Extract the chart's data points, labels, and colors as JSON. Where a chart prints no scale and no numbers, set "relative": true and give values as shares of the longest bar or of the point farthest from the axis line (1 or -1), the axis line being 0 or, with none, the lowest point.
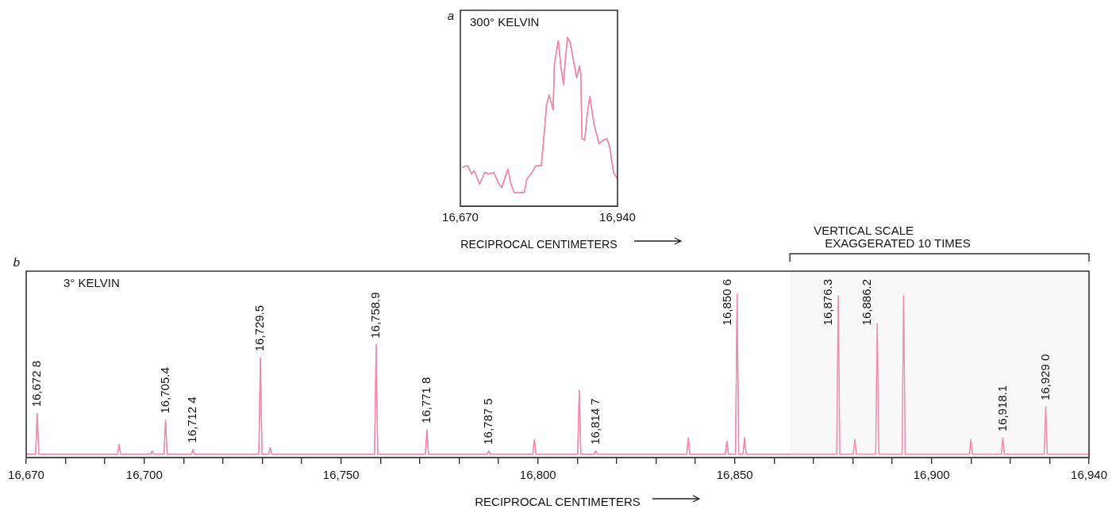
{
  "chart_data": [
    {
      "type": "line",
      "title": "300° KELVIN",
      "xlabel": "RECIPROCAL CENTIMETERS",
      "annotations": [
        "a"
      ],
      "relative": true,
      "color": "#f08aa8",
      "grid": false,
      "legend": false,
      "tick_labels": "x",
      "xlim": [
        16670,
        16940
      ],
      "xticks": [
        {
          "value": 16670,
          "label": "16,670"
        },
        {
          "value": 16940,
          "label": "16,940"
        }
      ],
      "x": [
        16673.6,
        16682.6,
        16689.4,
        16693.9,
        16703.0,
        16712.0,
        16718.8,
        16727.8,
        16734.6,
        16741.3,
        16751.7,
        16757.1,
        16762.6,
        16779.7,
        16784.2,
        16793.3,
        16800.0,
        16809.1,
        16813.6,
        16818.1,
        16822.6,
        16829.4,
        16831.6,
        16838.4,
        16842.9,
        16847.4,
        16849.7,
        16854.2,
        16858.7,
        16865.5,
        16870.0,
        16874.5,
        16876.8,
        16879.1,
        16883.6,
        16888.1,
        16892.6,
        16899.4,
        16903.9,
        16908.4,
        16915.2,
        16922.0,
        16926.5,
        16933.2,
        16940.0
      ],
      "values": [
        0.23,
        0.24,
        0.19,
        0.21,
        0.13,
        0.2,
        0.19,
        0.2,
        0.14,
        0.11,
        0.22,
        0.13,
        0.08,
        0.08,
        0.16,
        0.2,
        0.24,
        0.24,
        0.41,
        0.6,
        0.66,
        0.57,
        0.84,
        0.98,
        0.82,
        0.72,
        0.84,
        1.0,
        0.97,
        0.84,
        0.76,
        0.83,
        0.79,
        0.4,
        0.39,
        0.55,
        0.65,
        0.49,
        0.43,
        0.37,
        0.39,
        0.4,
        0.35,
        0.2,
        0.16
      ]
    },
    {
      "type": "line",
      "title": "3° KELVIN",
      "xlabel": "RECIPROCAL CENTIMETERS",
      "relative": true,
      "color": "#f08aa8",
      "grid": false,
      "legend": false,
      "tick_labels": "x",
      "xlim": [
        16670,
        16940
      ],
      "xticks": [
        {
          "value": 16670,
          "label": "16,670"
        },
        {
          "value": 16680,
          "label": null
        },
        {
          "value": 16690,
          "label": null
        },
        {
          "value": 16700,
          "label": "16,700"
        },
        {
          "value": 16710,
          "label": null
        },
        {
          "value": 16720,
          "label": null
        },
        {
          "value": 16730,
          "label": null
        },
        {
          "value": 16740,
          "label": null
        },
        {
          "value": 16750,
          "label": "16,750"
        },
        {
          "value": 16760,
          "label": null
        },
        {
          "value": 16770,
          "label": null
        },
        {
          "value": 16780,
          "label": null
        },
        {
          "value": 16790,
          "label": null
        },
        {
          "value": 16800,
          "label": "16,800"
        },
        {
          "value": 16810,
          "label": null
        },
        {
          "value": 16820,
          "label": null
        },
        {
          "value": 16830,
          "label": null
        },
        {
          "value": 16840,
          "label": null
        },
        {
          "value": 16850,
          "label": "16,850"
        },
        {
          "value": 16860,
          "label": null
        },
        {
          "value": 16870,
          "label": null
        },
        {
          "value": 16880,
          "label": null
        },
        {
          "value": 16890,
          "label": null
        },
        {
          "value": 16900,
          "label": "16,900"
        },
        {
          "value": 16910,
          "label": null
        },
        {
          "value": 16920,
          "label": null
        },
        {
          "value": 16930,
          "label": null
        },
        {
          "value": 16940,
          "label": "16,940"
        }
      ],
      "bands": [
        {
          "axis": "x",
          "from": 16864,
          "to": 16940,
          "label": "VERTICAL SCALE\nEXAGGERATED 10 TIMES",
          "color": "#f4f4f4"
        }
      ],
      "annotations": [
        "b",
        {
          "text": "16,672 8",
          "x": 16672.8,
          "y": 0.27
        },
        {
          "text": "16,705.4",
          "x": 16705.4,
          "y": 0.23
        },
        {
          "text": "16,712 4",
          "x": 16712.4,
          "y": 0.05
        },
        {
          "text": "16,729.5",
          "x": 16729.5,
          "y": 0.61
        },
        {
          "text": "16,758.9",
          "x": 16758.9,
          "y": 0.69
        },
        {
          "text": "16,771 8",
          "x": 16771.8,
          "y": 0.17
        },
        {
          "text": "16,787 5",
          "x": 16787.5,
          "y": 0.04
        },
        {
          "text": "16,814 7",
          "x": 16814.7,
          "y": 0.04
        },
        {
          "text": "16,850 6",
          "x": 16850.6,
          "y": 1
        },
        {
          "text": "16,876.3",
          "x": 16876.3,
          "y": 0.99
        },
        {
          "text": "16,886.2",
          "x": 16886.2,
          "y": 0.82
        },
        {
          "text": "16,918.1",
          "x": 16918.1,
          "y": 0.12
        },
        {
          "text": "16,929 0",
          "x": 16929.0,
          "y": 0.31
        }
      ],
      "x": [
        16670,
        16672.4,
        16672.8,
        16673.2,
        16693.2,
        16693.6,
        16694.0,
        16701.6,
        16702.0,
        16702.4,
        16705.0,
        16705.4,
        16705.8,
        16712.0,
        16712.4,
        16712.8,
        16729.1,
        16729.5,
        16729.9,
        16731.6,
        16732.0,
        16732.4,
        16758.5,
        16758.9,
        16759.3,
        16771.4,
        16771.8,
        16772.2,
        16787.1,
        16787.5,
        16787.9,
        16798.7,
        16799.1,
        16799.5,
        16810.1,
        16810.5,
        16810.9,
        16814.3,
        16814.7,
        16815.1,
        16837.8,
        16838.2,
        16838.6,
        16847.6,
        16848.0,
        16848.4,
        16850.2,
        16850.6,
        16851.0,
        16852.1,
        16852.5,
        16852.9,
        16875.9,
        16876.3,
        16876.7,
        16880.1,
        16880.5,
        16880.9,
        16885.8,
        16886.2,
        16886.6,
        16892.5,
        16892.9,
        16893.3,
        16909.6,
        16910.0,
        16910.4,
        16917.7,
        16918.1,
        16918.5,
        16928.6,
        16929.0,
        16929.4,
        16940
      ],
      "values": [
        0.02,
        0.02,
        0.27,
        0.02,
        0.02,
        0.08,
        0.02,
        0.02,
        0.04,
        0.02,
        0.02,
        0.23,
        0.02,
        0.02,
        0.05,
        0.02,
        0.02,
        0.61,
        0.02,
        0.02,
        0.06,
        0.02,
        0.02,
        0.69,
        0.02,
        0.02,
        0.17,
        0.02,
        0.02,
        0.04,
        0.02,
        0.02,
        0.11,
        0.02,
        0.02,
        0.41,
        0.02,
        0.02,
        0.04,
        0.02,
        0.02,
        0.12,
        0.02,
        0.02,
        0.1,
        0.02,
        0.02,
        1,
        0.02,
        0.02,
        0.12,
        0.02,
        0.02,
        0.99,
        0.02,
        0.02,
        0.11,
        0.02,
        0.02,
        0.82,
        0.02,
        0.02,
        0.99,
        0.02,
        0.02,
        0.11,
        0.02,
        0.02,
        0.12,
        0.02,
        0.02,
        0.31,
        0.02,
        0.02
      ]
    }
  ]
}
